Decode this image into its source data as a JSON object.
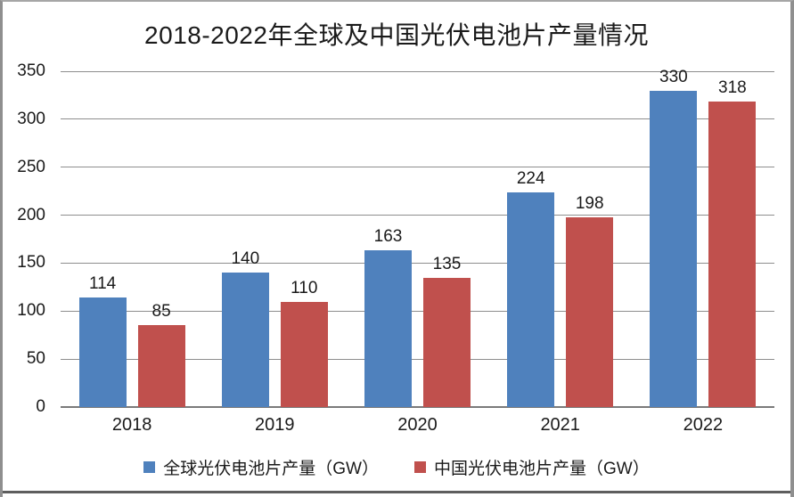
{
  "chart_data": {
    "type": "bar",
    "title": "2018-2022年全球及中国光伏电池片产量情况",
    "categories": [
      "2018",
      "2019",
      "2020",
      "2021",
      "2022"
    ],
    "series": [
      {
        "key": "global",
        "name": "全球光伏电池片产量（GW）",
        "color": "#4F81BD",
        "values": [
          114,
          140,
          163,
          224,
          330
        ]
      },
      {
        "key": "china",
        "name": "中国光伏电池片产量（GW）",
        "color": "#C0504D",
        "values": [
          85,
          110,
          135,
          198,
          318
        ]
      }
    ],
    "xlabel": "",
    "ylabel": "",
    "ylim": [
      0,
      350
    ],
    "ytick_step": 50,
    "yticks": [
      0,
      50,
      100,
      150,
      200,
      250,
      300,
      350
    ],
    "grid": "horizontal",
    "gridline_color": "#8e8e8e",
    "axis_line_color": "#7a7a7a",
    "text_color": "#1a1a1a",
    "legend_position": "bottom",
    "data_labels": true,
    "background": "#ffffff",
    "frame_border_color": "#8f8f8f",
    "frame_bottom_edge_color": "#5e5e5e"
  }
}
